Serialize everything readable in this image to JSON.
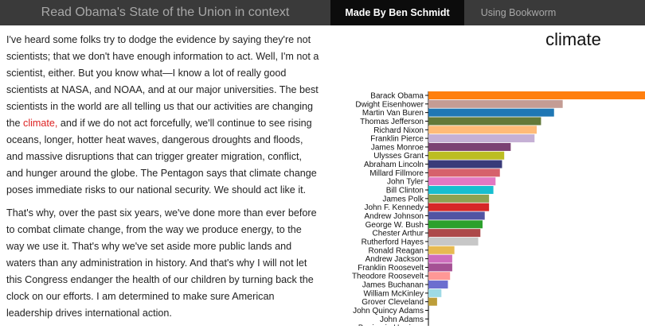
{
  "navbar": {
    "brand": "Read Obama's State of the Union in context",
    "active_tab": "Made By Ben Schmidt",
    "link": "Using Bookworm"
  },
  "article": {
    "p1_before": "I've heard some folks try to dodge the evidence by saying they're not scientists; that we don't have enough information to act. Well, I'm not a scientist, either. But you know what—I know a lot of really good scientists at NASA, and NOAA, and at our major universities. The best scientists in the world are all telling us that our activities are changing the ",
    "p1_highlight": "climate,",
    "p1_after": " and if we do not act forcefully, we'll continue to see rising oceans, longer, hotter heat waves, dangerous droughts and floods, and massive disruptions that can trigger greater migration, conflict, and hunger around the globe. The Pentagon says that climate change poses immediate risks to our national security. We should act like it.",
    "p2": "That's why, over the past six years, we've done more than ever before to combat climate change, from the way we produce energy, to the way we use it. That's why we've set aside more public lands and waters than any administration in history. And that's why I will not let this Congress endanger the health of our children by turning back the clock on our efforts. I am determined to make sure American leadership drives international action."
  },
  "colors": {
    "highlight": "#dd2222"
  },
  "chart_data": {
    "type": "bar",
    "orientation": "horizontal",
    "title": "climate",
    "xlabel": "",
    "ylabel": "",
    "xlim": [
      0,
      100
    ],
    "categories": [
      "Barack Obama",
      "Dwight Eisenhower",
      "Martin Van Buren",
      "Thomas Jefferson",
      "Richard Nixon",
      "Franklin Pierce",
      "James Monroe",
      "Ulysses Grant",
      "Abraham Lincoln",
      "Millard Fillmore",
      "John Tyler",
      "Bill Clinton",
      "James Polk",
      "John F. Kennedy",
      "Andrew Johnson",
      "George W. Bush",
      "Chester Arthur",
      "Rutherford Hayes",
      "Ronald Reagan",
      "Andrew Jackson",
      "Franklin Roosevelt",
      "Theodore Roosevelt",
      "James Buchanan",
      "William McKinley",
      "Grover Cleveland",
      "John Quincy Adams",
      "John Adams",
      "Benjamin Harrison"
    ],
    "values": [
      100,
      62,
      58,
      52,
      50,
      49,
      38,
      35,
      34,
      33,
      31,
      30,
      28,
      28,
      26,
      25,
      24,
      23,
      12,
      11,
      11,
      10,
      9,
      6,
      4,
      0,
      0,
      0
    ],
    "colors": [
      "#ff7f0e",
      "#c49c94",
      "#1f77b4",
      "#637939",
      "#ffbb78",
      "#c5b0d5",
      "#7b4173",
      "#bcbd22",
      "#393b79",
      "#d6616b",
      "#e377c2",
      "#17becf",
      "#8ca252",
      "#d62728",
      "#5254a3",
      "#2ca02c",
      "#ad494a",
      "#c7c7c7",
      "#e7ba52",
      "#ce6dbd",
      "#a55194",
      "#ff9896",
      "#6b6ecf",
      "#9edae5",
      "#bd9e39",
      "#98df8a",
      "#aec7e8",
      "#f7b6d2"
    ]
  }
}
